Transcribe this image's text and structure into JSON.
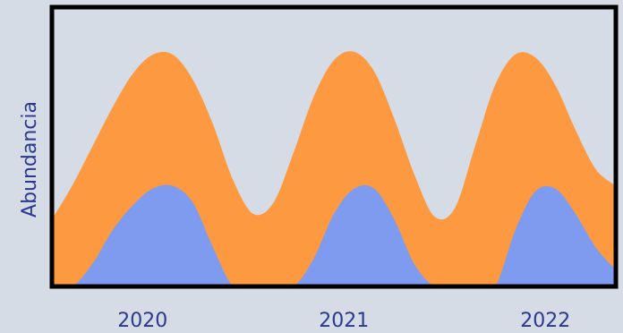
{
  "chart_data": {
    "type": "area",
    "y_label": "Abundancia",
    "x": [
      2019.55,
      2019.65,
      2019.75,
      2019.85,
      2019.95,
      2020.05,
      2020.15,
      2020.25,
      2020.35,
      2020.45,
      2020.55,
      2020.65,
      2020.75,
      2020.85,
      2020.95,
      2021.05,
      2021.15,
      2021.25,
      2021.35,
      2021.45,
      2021.55,
      2021.65,
      2021.75,
      2021.85,
      2021.95,
      2022.05,
      2022.15,
      2022.25,
      2022.35
    ],
    "series": [
      {
        "color": "#fd9a41",
        "values": [
          24,
          36,
          50,
          64,
          76,
          83,
          83,
          74,
          58,
          38,
          26,
          30,
          48,
          68,
          81,
          84,
          77,
          60,
          40,
          25,
          28,
          50,
          72,
          83,
          82,
          72,
          56,
          42,
          36
        ]
      },
      {
        "color": "#7f9bf0",
        "values": [
          0,
          0,
          8,
          20,
          29,
          35,
          36,
          30,
          14,
          0,
          0,
          0,
          0,
          10,
          26,
          35,
          35,
          24,
          8,
          0,
          0,
          0,
          0,
          20,
          34,
          35,
          26,
          14,
          6
        ]
      }
    ],
    "xlim": [
      2019.55,
      2022.35
    ],
    "xticks": [
      2020,
      2021,
      2022
    ],
    "ylim": [
      0,
      100
    ]
  }
}
